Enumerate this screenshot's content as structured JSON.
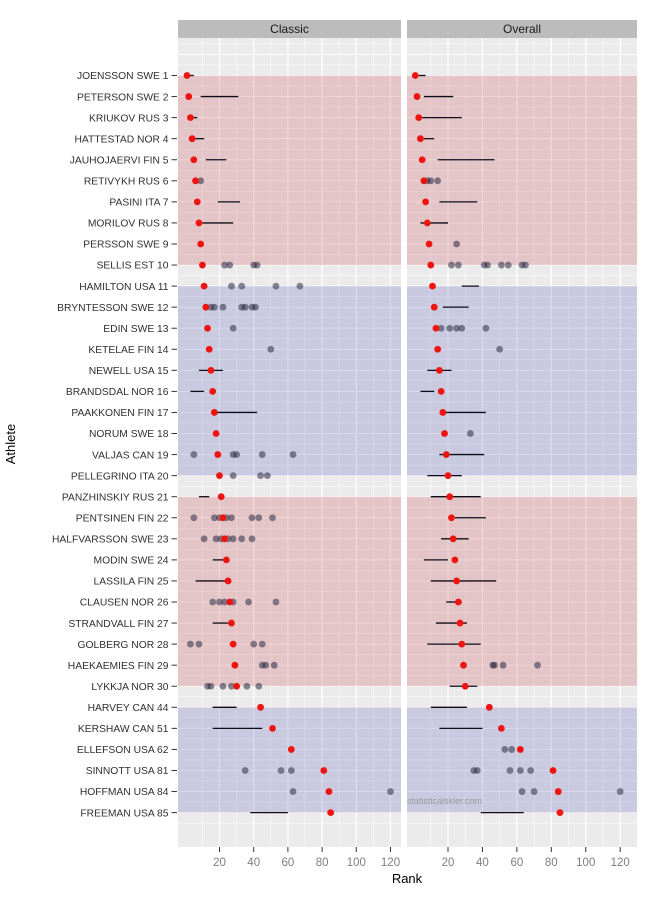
{
  "chart_data": {
    "type": "scatter",
    "title": "",
    "xlabel": "Rank",
    "ylabel": "Athlete",
    "facets": [
      "Classic",
      "Overall"
    ],
    "x_ticks": [
      20,
      40,
      60,
      80,
      100,
      120
    ],
    "x_range": [
      -5,
      127
    ],
    "grid": "on",
    "watermark": "statisticalskier.com",
    "colors": {
      "panel_bg": "#ebebeb",
      "strip_bg": "#bcbcbc",
      "band_red": "rgba(202,62,74,0.22)",
      "band_blue": "rgba(82,82,180,0.22)",
      "median_dot": "#ee1410",
      "result_dot": "rgba(42,42,66,0.55)",
      "range_line": "#0d0d1a",
      "grid_line": "#ffffff",
      "tick_text": "#7f7f7f",
      "athlete_text": "#303030",
      "tick_mark": "#333333"
    },
    "bands": [
      {
        "from_row": 1,
        "to_row": 10,
        "color": "band_red"
      },
      {
        "from_row": 11,
        "to_row": 20,
        "color": "band_blue"
      },
      {
        "from_row": 21,
        "to_row": 30,
        "color": "band_red"
      },
      {
        "from_row": 31,
        "to_row": 36,
        "color": "band_blue"
      }
    ],
    "athletes": [
      {
        "label": "JOENSSON SWE 1",
        "rank": 1,
        "classic": {
          "range": [
            2,
            5
          ],
          "points": []
        },
        "overall": {
          "range": [
            3,
            7
          ],
          "points": []
        }
      },
      {
        "label": "PETERSON SWE 2",
        "rank": 2,
        "classic": {
          "range": [
            9,
            31
          ],
          "points": []
        },
        "overall": {
          "range": [
            6,
            23
          ],
          "points": []
        }
      },
      {
        "label": "KRIUKOV RUS 3",
        "rank": 3,
        "classic": {
          "range": [
            5,
            7
          ],
          "points": []
        },
        "overall": {
          "range": [
            5,
            28
          ],
          "points": []
        }
      },
      {
        "label": "HATTESTAD NOR 4",
        "rank": 4,
        "classic": {
          "range": [
            6,
            11
          ],
          "points": []
        },
        "overall": {
          "range": [
            6,
            12
          ],
          "points": []
        }
      },
      {
        "label": "JAUHOJAERVI FIN 5",
        "rank": 5,
        "classic": {
          "range": [
            12,
            24
          ],
          "points": []
        },
        "overall": {
          "range": [
            14,
            47
          ],
          "points": []
        }
      },
      {
        "label": "RETIVYKH RUS 6",
        "rank": 6,
        "classic": {
          "range": null,
          "points": [
            9
          ]
        },
        "overall": {
          "range": null,
          "points": [
            8,
            10,
            14
          ]
        }
      },
      {
        "label": "PASINI ITA 7",
        "rank": 7,
        "classic": {
          "range": [
            19,
            32
          ],
          "points": []
        },
        "overall": {
          "range": [
            15,
            37
          ],
          "points": []
        }
      },
      {
        "label": "MORILOV RUS 8",
        "rank": 8,
        "classic": {
          "range": [
            10,
            28
          ],
          "points": []
        },
        "overall": {
          "range": [
            4,
            20
          ],
          "points": []
        }
      },
      {
        "label": "PERSSON SWE 9",
        "rank": 9,
        "classic": {
          "range": null,
          "points": []
        },
        "overall": {
          "range": null,
          "points": [
            25
          ]
        }
      },
      {
        "label": "SELLIS EST 10",
        "rank": 10,
        "classic": {
          "range": null,
          "points": [
            23,
            26,
            40,
            42
          ]
        },
        "overall": {
          "range": null,
          "points": [
            22,
            26,
            41,
            43,
            51,
            55,
            63,
            65
          ]
        }
      },
      {
        "label": "HAMILTON USA 11",
        "rank": 11,
        "classic": {
          "range": null,
          "points": [
            27,
            33,
            53,
            67
          ]
        },
        "overall": {
          "range": [
            28,
            38
          ],
          "points": []
        }
      },
      {
        "label": "BRYNTESSON SWE 12",
        "rank": 12,
        "classic": {
          "range": null,
          "points": [
            15,
            17,
            22,
            33,
            35,
            39,
            41
          ]
        },
        "overall": {
          "range": [
            17,
            32
          ],
          "points": []
        }
      },
      {
        "label": "EDIN SWE 13",
        "rank": 13,
        "classic": {
          "range": null,
          "points": [
            28
          ]
        },
        "overall": {
          "range": null,
          "points": [
            16,
            21,
            25,
            28,
            42
          ]
        }
      },
      {
        "label": "KETELAE FIN 14",
        "rank": 14,
        "classic": {
          "range": null,
          "points": [
            50
          ]
        },
        "overall": {
          "range": null,
          "points": [
            50
          ]
        }
      },
      {
        "label": "NEWELL USA 15",
        "rank": 15,
        "classic": {
          "range": [
            8,
            22
          ],
          "points": []
        },
        "overall": {
          "range": [
            8,
            22
          ],
          "points": []
        }
      },
      {
        "label": "BRANDSDAL NOR 16",
        "rank": 16,
        "classic": {
          "range": [
            3,
            11
          ],
          "points": []
        },
        "overall": {
          "range": [
            4,
            12
          ],
          "points": []
        }
      },
      {
        "label": "PAAKKONEN FIN 17",
        "rank": 17,
        "classic": {
          "range": [
            17,
            42
          ],
          "points": []
        },
        "overall": {
          "range": [
            18,
            42
          ],
          "points": []
        }
      },
      {
        "label": "NORUM SWE 18",
        "rank": 18,
        "classic": {
          "range": null,
          "points": []
        },
        "overall": {
          "range": null,
          "points": [
            33
          ]
        }
      },
      {
        "label": "VALJAS CAN 19",
        "rank": 19,
        "classic": {
          "range": null,
          "points": [
            5,
            28,
            30,
            45,
            63
          ]
        },
        "overall": {
          "range": [
            15,
            41
          ],
          "points": []
        }
      },
      {
        "label": "PELLEGRINO ITA 20",
        "rank": 20,
        "classic": {
          "range": null,
          "points": [
            28,
            44,
            48
          ]
        },
        "overall": {
          "range": [
            8,
            28
          ],
          "points": []
        }
      },
      {
        "label": "PANZHINSKIY RUS 21",
        "rank": 21,
        "classic": {
          "range": [
            8,
            14
          ],
          "points": []
        },
        "overall": {
          "range": [
            10,
            39
          ],
          "points": []
        }
      },
      {
        "label": "PENTSINEN FIN 22",
        "rank": 22,
        "classic": {
          "range": null,
          "points": [
            5,
            17,
            20,
            24,
            27,
            39,
            43,
            51
          ]
        },
        "overall": {
          "range": [
            24,
            42
          ],
          "points": []
        }
      },
      {
        "label": "HALFVARSSON SWE 23",
        "rank": 23,
        "classic": {
          "range": null,
          "points": [
            11,
            18,
            21,
            25,
            28,
            33,
            39
          ]
        },
        "overall": {
          "range": [
            16,
            32
          ],
          "points": []
        }
      },
      {
        "label": "MODIN SWE 24",
        "rank": 24,
        "classic": {
          "range": [
            16,
            22
          ],
          "points": []
        },
        "overall": {
          "range": [
            6,
            20
          ],
          "points": []
        }
      },
      {
        "label": "LASSILA FIN 25",
        "rank": 25,
        "classic": {
          "range": [
            6,
            24
          ],
          "points": []
        },
        "overall": {
          "range": [
            10,
            48
          ],
          "points": []
        }
      },
      {
        "label": "CLAUSEN NOR 26",
        "rank": 26,
        "classic": {
          "range": null,
          "points": [
            16,
            20,
            23,
            28,
            37,
            53
          ]
        },
        "overall": {
          "range": [
            19,
            28
          ],
          "points": []
        }
      },
      {
        "label": "STRANDVALL FIN 27",
        "rank": 27,
        "classic": {
          "range": [
            16,
            25
          ],
          "points": []
        },
        "overall": {
          "range": [
            13,
            31
          ],
          "points": []
        }
      },
      {
        "label": "GOLBERG NOR 28",
        "rank": 28,
        "classic": {
          "range": null,
          "points": [
            3,
            8,
            40,
            45
          ]
        },
        "overall": {
          "range": [
            8,
            39
          ],
          "points": []
        }
      },
      {
        "label": "HAEKAEMIES FIN 29",
        "rank": 29,
        "classic": {
          "range": null,
          "points": [
            45,
            47,
            52
          ]
        },
        "overall": {
          "range": null,
          "points": [
            46,
            47,
            52,
            72
          ]
        }
      },
      {
        "label": "LYKKJA NOR 30",
        "rank": 30,
        "classic": {
          "range": null,
          "points": [
            13,
            15,
            22,
            27,
            36,
            43
          ]
        },
        "overall": {
          "range": [
            21,
            37
          ],
          "points": []
        }
      },
      {
        "label": "HARVEY CAN 44",
        "rank": 44,
        "classic": {
          "range": [
            16,
            30
          ],
          "points": []
        },
        "overall": {
          "range": [
            10,
            31
          ],
          "points": []
        }
      },
      {
        "label": "KERSHAW CAN 51",
        "rank": 51,
        "classic": {
          "range": [
            16,
            45
          ],
          "points": []
        },
        "overall": {
          "range": [
            15,
            40
          ],
          "points": []
        }
      },
      {
        "label": "ELLEFSON USA 62",
        "rank": 62,
        "classic": {
          "range": null,
          "points": []
        },
        "overall": {
          "range": null,
          "points": [
            53,
            57
          ]
        }
      },
      {
        "label": "SINNOTT USA 81",
        "rank": 81,
        "classic": {
          "range": null,
          "points": [
            35,
            56,
            62
          ]
        },
        "overall": {
          "range": null,
          "points": [
            35,
            37,
            56,
            62,
            68
          ]
        }
      },
      {
        "label": "HOFFMAN USA 84",
        "rank": 84,
        "classic": {
          "range": null,
          "points": [
            63,
            120
          ]
        },
        "overall": {
          "range": null,
          "points": [
            63,
            70,
            120
          ]
        }
      },
      {
        "label": "FREEMAN USA 85",
        "rank": 85,
        "classic": {
          "range": [
            38,
            60
          ],
          "points": []
        },
        "overall": {
          "range": [
            39,
            64
          ],
          "points": []
        }
      }
    ]
  }
}
